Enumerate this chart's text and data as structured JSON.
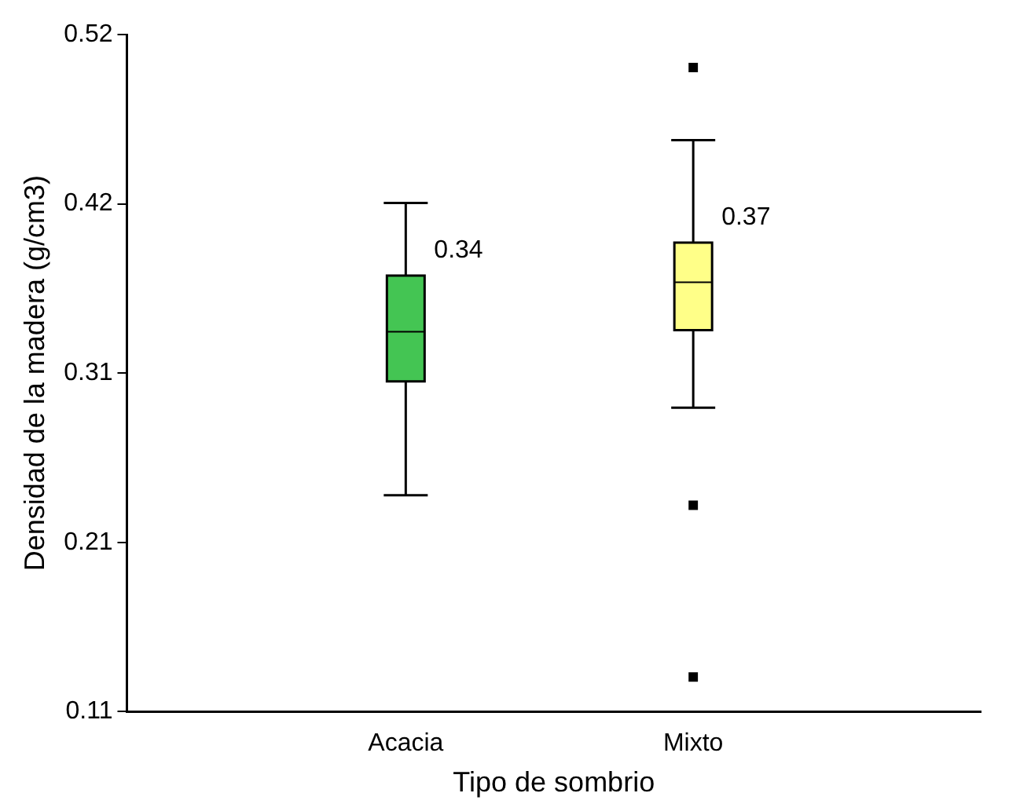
{
  "chart_data": {
    "type": "box",
    "xlabel": "Tipo de sombrio",
    "ylabel": "Densidad de la madera (g/cm3)",
    "categories": [
      "Acacia",
      "Mixto"
    ],
    "boxes": [
      {
        "low": 0.241,
        "q1": 0.31,
        "median": 0.34,
        "q3": 0.374,
        "high": 0.418
      },
      {
        "low": 0.294,
        "q1": 0.341,
        "median": 0.37,
        "q3": 0.394,
        "high": 0.456,
        "outliers": [
          0.5,
          0.235,
          0.131
        ]
      }
    ],
    "colors": [
      "#44c553",
      "#ffff88"
    ],
    "value_labels": [
      "0.34",
      "0.37"
    ],
    "ylim": [
      0.11,
      0.52
    ],
    "yticks": [
      {
        "value": 0.11,
        "label": "0.11"
      },
      {
        "value": 0.2125,
        "label": "0.21"
      },
      {
        "value": 0.315,
        "label": "0.31"
      },
      {
        "value": 0.4175,
        "label": "0.42"
      },
      {
        "value": 0.52,
        "label": "0.52"
      }
    ],
    "grid": false
  }
}
